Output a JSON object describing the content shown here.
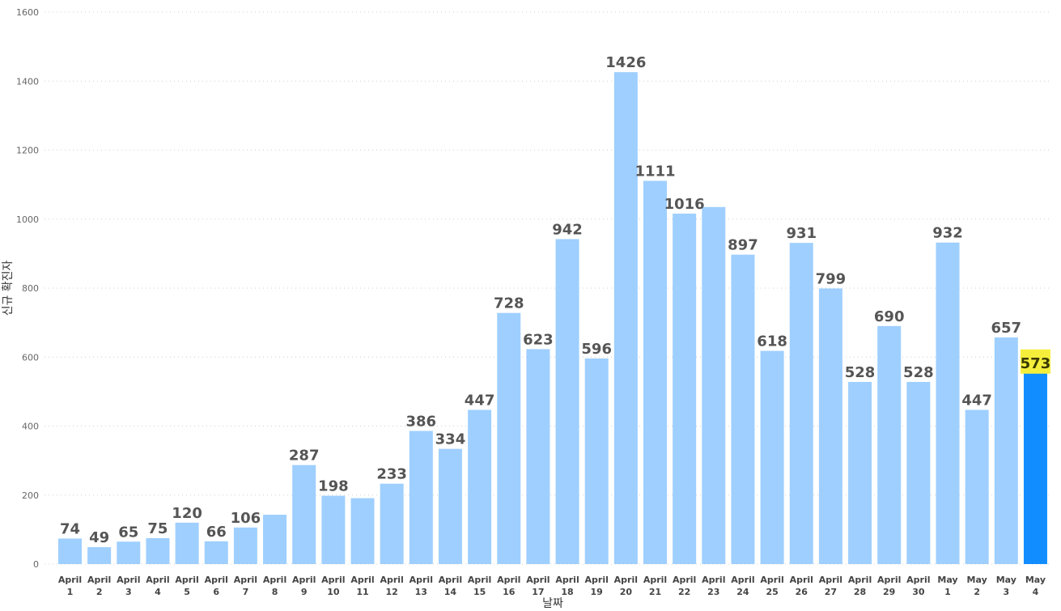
{
  "chart_data": {
    "type": "bar",
    "title": "",
    "xlabel": "날짜",
    "ylabel": "신규 확진자",
    "ylim": [
      0,
      1600
    ],
    "yticks": [
      0,
      200,
      400,
      600,
      800,
      1000,
      1200,
      1400,
      1600
    ],
    "grid": true,
    "categories": [
      [
        "April",
        "1"
      ],
      [
        "April",
        "2"
      ],
      [
        "April",
        "3"
      ],
      [
        "April",
        "4"
      ],
      [
        "April",
        "5"
      ],
      [
        "April",
        "6"
      ],
      [
        "April",
        "7"
      ],
      [
        "April",
        "8"
      ],
      [
        "April",
        "9"
      ],
      [
        "April",
        "10"
      ],
      [
        "April",
        "11"
      ],
      [
        "April",
        "12"
      ],
      [
        "April",
        "13"
      ],
      [
        "April",
        "14"
      ],
      [
        "April",
        "15"
      ],
      [
        "April",
        "16"
      ],
      [
        "April",
        "17"
      ],
      [
        "April",
        "18"
      ],
      [
        "April",
        "19"
      ],
      [
        "April",
        "20"
      ],
      [
        "April",
        "21"
      ],
      [
        "April",
        "22"
      ],
      [
        "April",
        "23"
      ],
      [
        "April",
        "24"
      ],
      [
        "April",
        "25"
      ],
      [
        "April",
        "26"
      ],
      [
        "April",
        "27"
      ],
      [
        "April",
        "28"
      ],
      [
        "April",
        "29"
      ],
      [
        "April",
        "30"
      ],
      [
        "May",
        "1"
      ],
      [
        "May",
        "2"
      ],
      [
        "May",
        "3"
      ],
      [
        "May",
        "4"
      ]
    ],
    "values": [
      74,
      49,
      65,
      75,
      120,
      66,
      106,
      143,
      287,
      198,
      191,
      233,
      386,
      334,
      447,
      728,
      623,
      942,
      596,
      1426,
      1111,
      1016,
      1035,
      897,
      618,
      931,
      799,
      528,
      690,
      528,
      932,
      447,
      657,
      573
    ],
    "data_labels": [
      "74",
      "49",
      "65",
      "75",
      "120",
      "66",
      "106",
      "",
      "287",
      "198",
      "",
      "233",
      "386",
      "334",
      "447",
      "728",
      "623",
      "942",
      "596",
      "1426",
      "1111",
      "1016",
      "",
      "897",
      "618",
      "931",
      "799",
      "528",
      "690",
      "528",
      "932",
      "447",
      "657",
      "573"
    ],
    "highlight_index": 33,
    "colors": {
      "bar": "#9ecfff",
      "highlight_bar": "#118dff",
      "highlight_label_bg": "#f5ef3c",
      "highlight_label_text": "#3a3a00",
      "grid": "#d0d0d0"
    }
  }
}
